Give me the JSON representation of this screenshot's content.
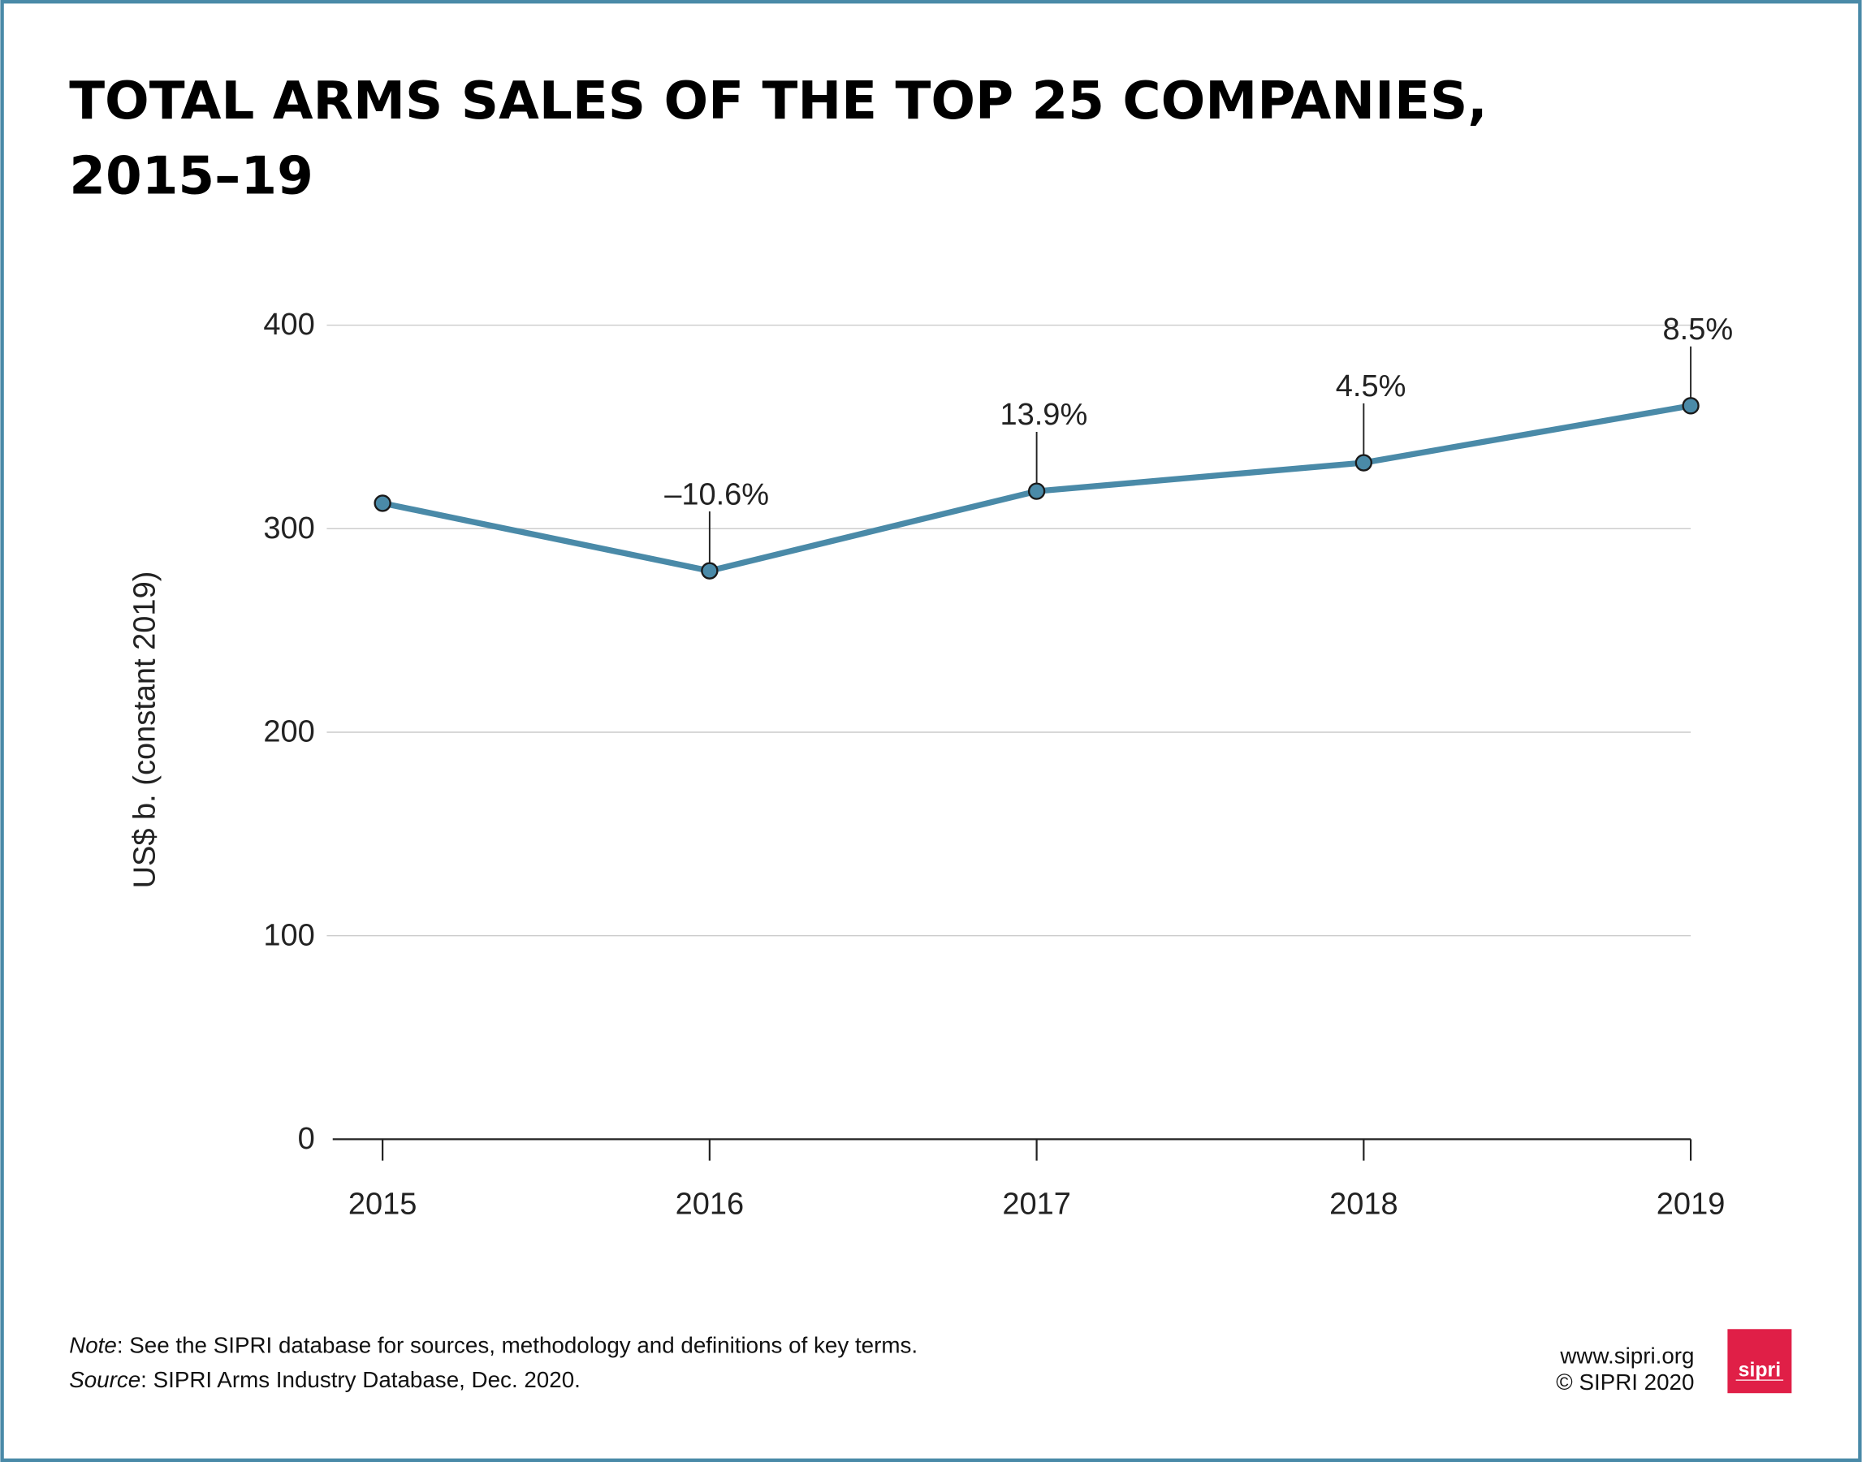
{
  "title_lines": [
    "TOTAL ARMS SALES OF THE TOP 25 COMPANIES,",
    "2015–19"
  ],
  "colors": {
    "frame": "#4a8aa8",
    "line": "#4a8aa8",
    "grid": "#cccccc",
    "logo": "#e01f47"
  },
  "chart_data": {
    "type": "line",
    "title": "TOTAL ARMS SALES OF THE TOP 25 COMPANIES, 2015–19",
    "xlabel": "",
    "ylabel": "US$ b. (constant 2019)",
    "categories": [
      "2015",
      "2016",
      "2017",
      "2018",
      "2019"
    ],
    "values": [
      312.5,
      279.3,
      318.4,
      332.4,
      360.4
    ],
    "annotations": [
      "",
      "–10.6%",
      "13.9%",
      "4.5%",
      "8.5%"
    ],
    "yticks": [
      0,
      100,
      200,
      300,
      400
    ],
    "ylim": [
      0,
      400
    ],
    "grid": true
  },
  "footer": {
    "note_label": "Note",
    "note_text": ": See the SIPRI database for sources, methodology and definitions of key terms.",
    "source_label": "Source",
    "source_text": ": SIPRI Arms Industry Database, Dec. 2020.",
    "website": "www.sipri.org",
    "copyright": "© SIPRI 2020",
    "logo_text": "sipri"
  }
}
